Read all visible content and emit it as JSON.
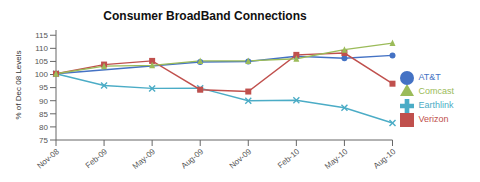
{
  "chart_data": {
    "type": "line",
    "title": "Consumer BroadBand Connections",
    "y_label": "% of Dec 08 Levels",
    "categories": [
      "Nov-08",
      "Feb-09",
      "May-09",
      "Aug-09",
      "Nov-09",
      "Feb-10",
      "May-10",
      "Aug-10"
    ],
    "series": [
      {
        "name": "Earthlink",
        "color": "#4BACC6",
        "marker": "x",
        "values": [
          100.3,
          95.8,
          94.7,
          94.8,
          90.0,
          90.2,
          87.3,
          81.5
        ]
      },
      {
        "name": "AT&T",
        "color": "#4472C4",
        "marker": "circle",
        "values": [
          100.3,
          null,
          null,
          104.8,
          105.0,
          107.0,
          106.2,
          107.3
        ]
      },
      {
        "name": "Verizon",
        "color": "#C0504D",
        "marker": "square",
        "values": [
          100.3,
          103.8,
          105.2,
          94.2,
          93.5,
          107.5,
          108.2,
          96.5
        ]
      },
      {
        "name": "Comcast",
        "color": "#9BBB59",
        "marker": "triangle",
        "values": [
          100.3,
          103.2,
          103.5,
          105.2,
          105.2,
          106.0,
          109.5,
          112.0
        ]
      }
    ],
    "ylim": [
      75,
      117
    ],
    "yticks": [
      75,
      80,
      85,
      90,
      95,
      100,
      105,
      110,
      115
    ],
    "grid": false,
    "legend": "right"
  }
}
